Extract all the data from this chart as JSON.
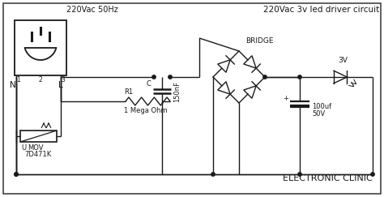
{
  "title": "220Vac 3v led driver circuit",
  "subtitle": "ELECTRONIC CLINIC",
  "label_220vac": "220Vac 50Hz",
  "label_N": "N",
  "label_L": "L",
  "label_C": "C",
  "label_cap1": "150nF",
  "label_R1": "R1",
  "label_R1_val": "1 Mega Ohm",
  "label_MOV": "MOV",
  "label_MOV_part": "7D471K",
  "label_MOV_ref": "U",
  "label_bridge": "BRIDGE",
  "label_cap2": "100uf",
  "label_cap2_v": "50V",
  "label_cap2_plus": "+",
  "label_led": "3V",
  "pin1": "1",
  "pin2": "2",
  "pin3": "3",
  "bg_color": "#ffffff",
  "line_color": "#1a1a1a",
  "border_color": "#444444",
  "font_size_title": 7.5,
  "font_size_label": 6.0,
  "font_size_main": 6.5,
  "font_size_small": 5.5
}
